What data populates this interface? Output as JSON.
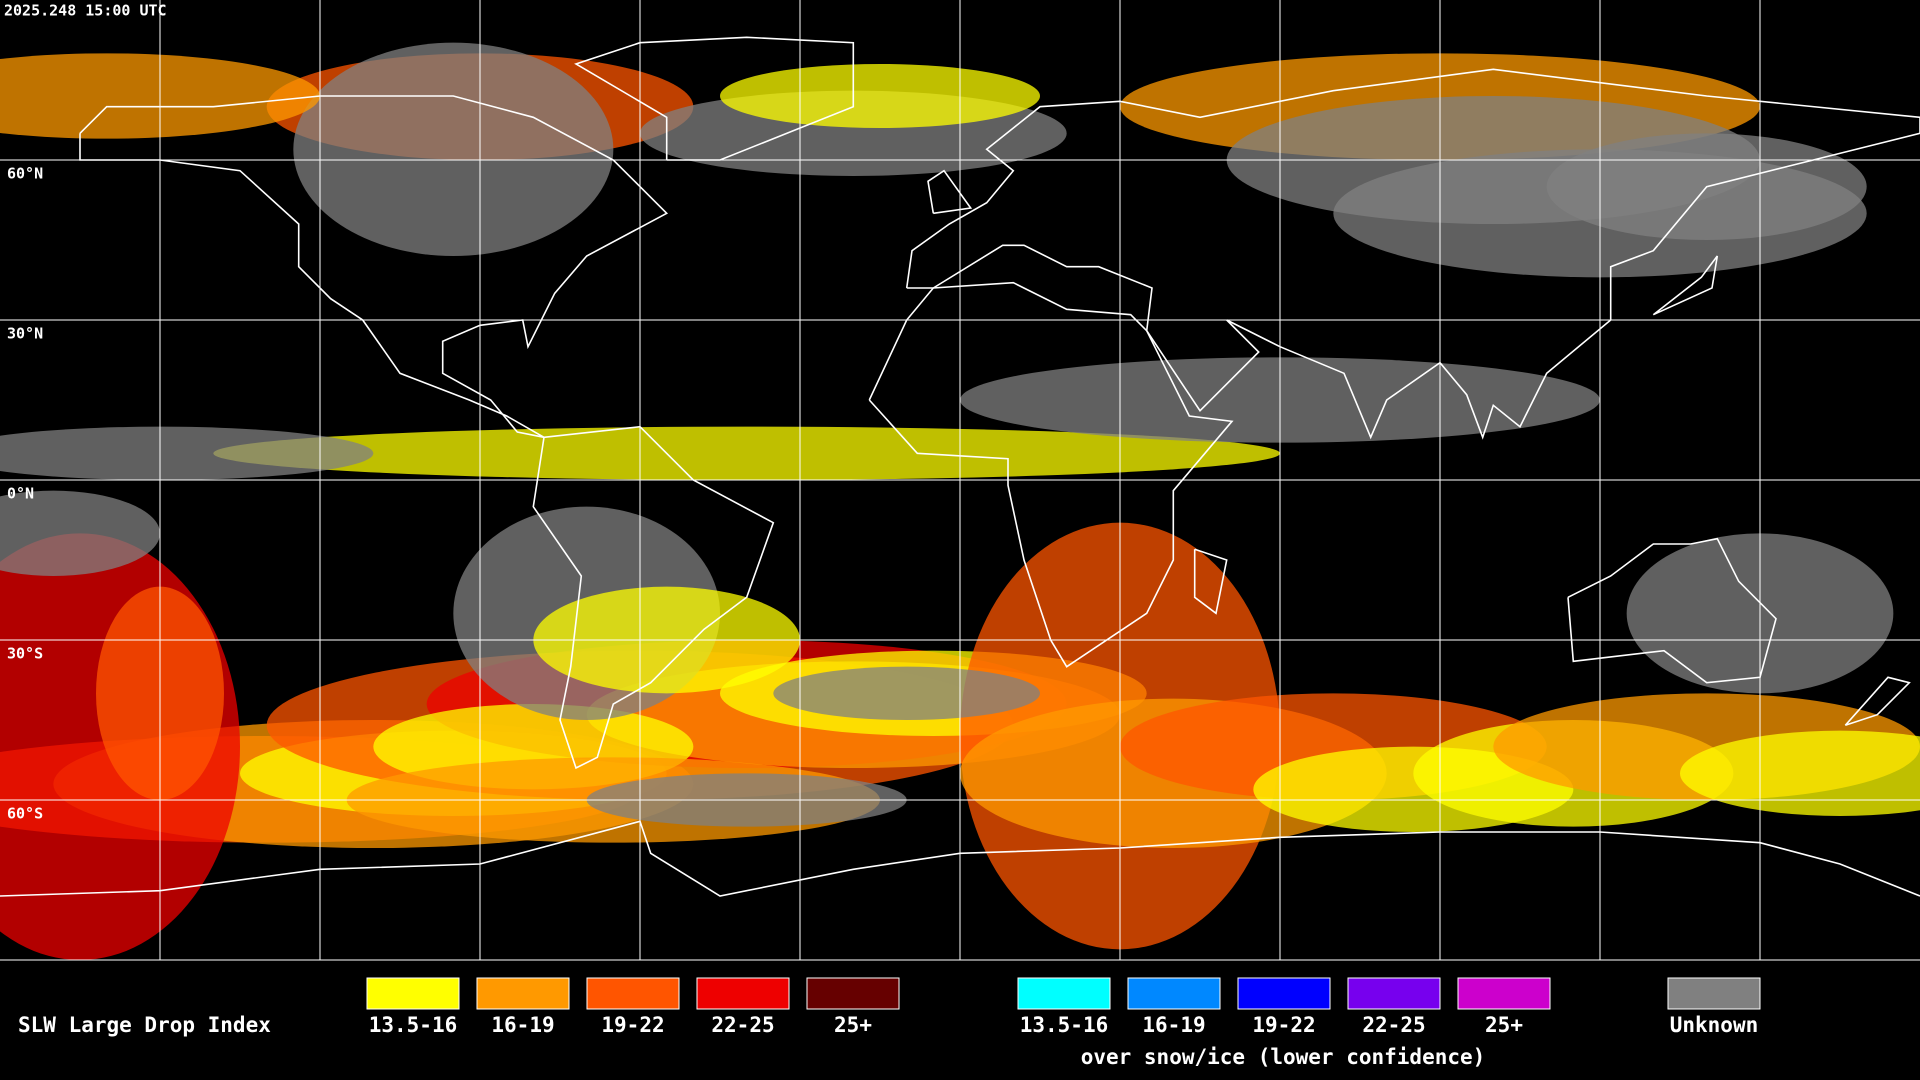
{
  "timestamp": "2025.248 15:00 UTC",
  "latitude_labels": [
    "60°N",
    "30°N",
    "0°N",
    "30°S",
    "60°S"
  ],
  "legend": {
    "title": "SLW Large Drop Index",
    "items": [
      {
        "label": "13.5-16",
        "color": "#ffff00"
      },
      {
        "label": "16-19",
        "color": "#ff9900"
      },
      {
        "label": "19-22",
        "color": "#ff5500"
      },
      {
        "label": "22-25",
        "color": "#ee0000"
      },
      {
        "label": "25+",
        "color": "#660000"
      }
    ],
    "snow_items": [
      {
        "label": "13.5-16",
        "color": "#00ffff"
      },
      {
        "label": "16-19",
        "color": "#0088ff"
      },
      {
        "label": "19-22",
        "color": "#0000ff"
      },
      {
        "label": "22-25",
        "color": "#7700ee"
      },
      {
        "label": "25+",
        "color": "#cc00cc"
      }
    ],
    "snow_caption": "over snow/ice (lower confidence)",
    "unknown": {
      "label": "Unknown",
      "color": "#808080"
    }
  }
}
